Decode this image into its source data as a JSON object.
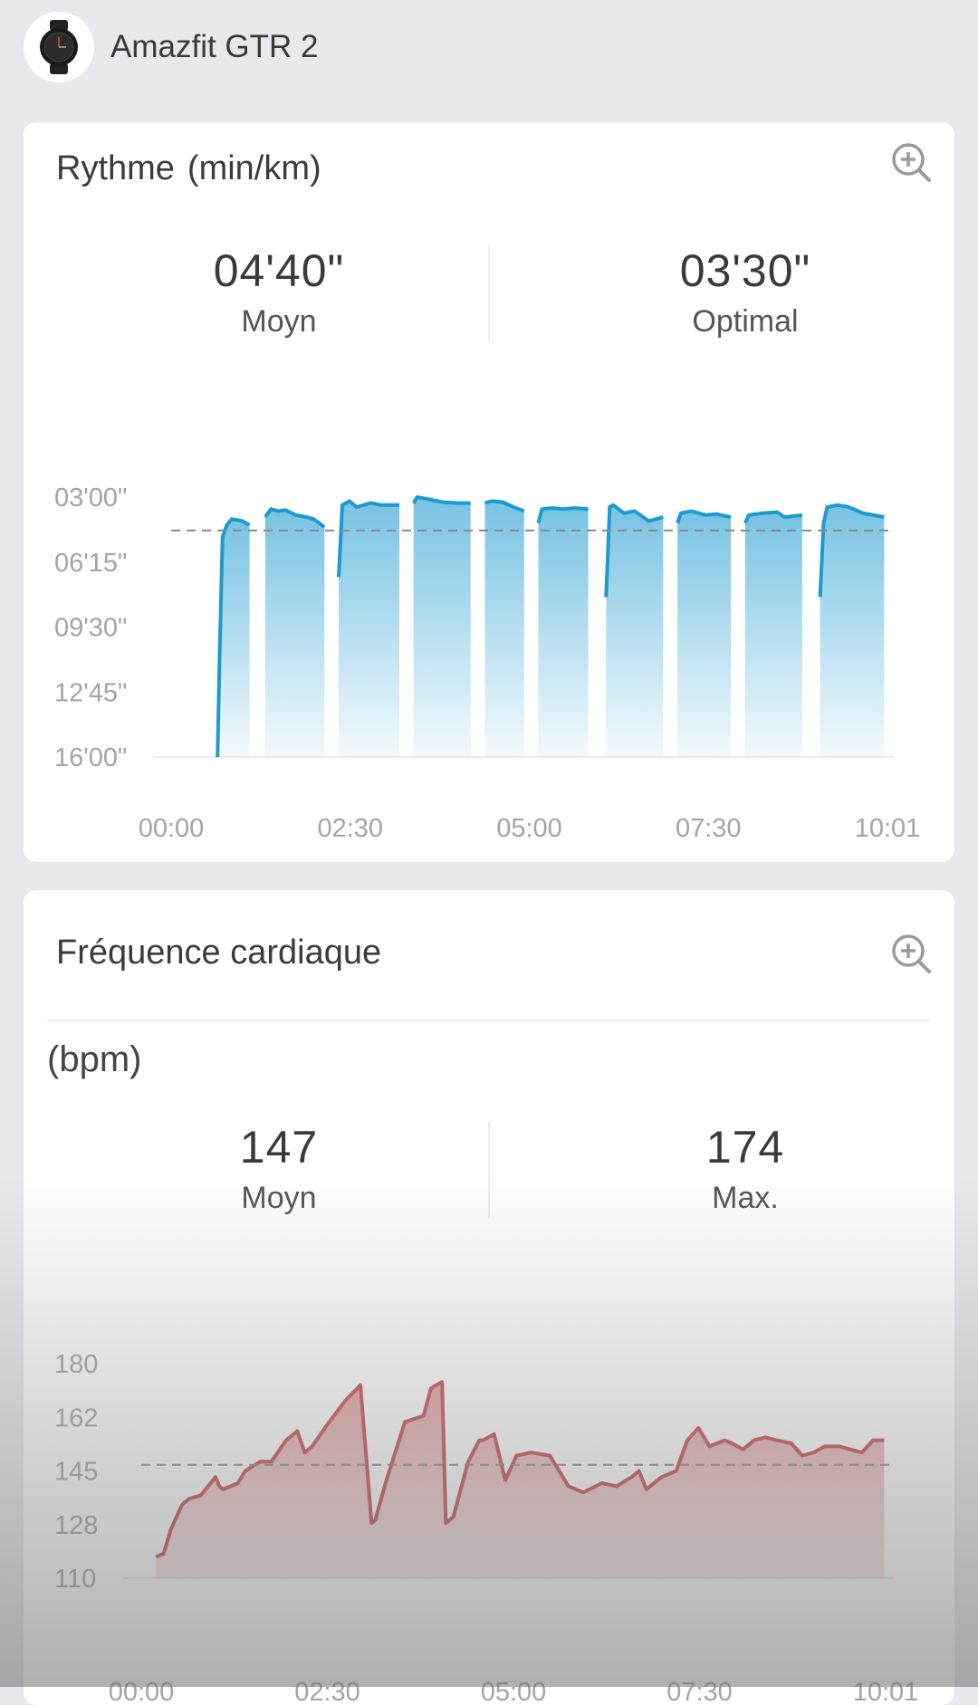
{
  "header": {
    "device_name": "Amazfit GTR 2",
    "device_icon": "watch-icon"
  },
  "pace": {
    "title": "Rythme",
    "unit": "(min/km)",
    "avg_value": "04'40\"",
    "avg_label": "Moyn",
    "best_value": "03'30\"",
    "best_label": "Optimal",
    "zoom_icon": "zoom-in-icon"
  },
  "heart_rate": {
    "title": "Fréquence cardiaque",
    "unit": "(bpm)",
    "avg_value": "147",
    "avg_label": "Moyn",
    "max_value": "174",
    "max_label": "Max.",
    "zoom_icon": "zoom-in-icon"
  },
  "chart_data": [
    {
      "type": "area",
      "color": "#1d9ad0",
      "y_inverted": true,
      "ylim": [
        16,
        3
      ],
      "y_ticks": [
        "03'00\"",
        "06'15\"",
        "09'30\"",
        "12'45\"",
        "16'00\""
      ],
      "x_ticks": [
        "00:00",
        "02:30",
        "05:00",
        "07:30",
        "10:01"
      ],
      "xlim": [
        0,
        10.02
      ],
      "average": 4.67,
      "segments": [
        {
          "x": [
            0.65,
            0.68,
            0.72,
            0.78,
            0.85,
            1.0,
            1.1
          ],
          "y": [
            16,
            11,
            5,
            4.4,
            4.1,
            4.2,
            4.4
          ]
        },
        {
          "x": [
            1.32,
            1.4,
            1.5,
            1.6,
            1.75,
            1.9,
            2.0,
            2.15
          ],
          "y": [
            4.0,
            3.6,
            3.7,
            3.65,
            3.9,
            4.0,
            4.1,
            4.5
          ]
        },
        {
          "x": [
            2.35,
            2.4,
            2.5,
            2.6,
            2.8,
            2.95,
            3.2
          ],
          "y": [
            7.0,
            3.4,
            3.2,
            3.5,
            3.3,
            3.4,
            3.4
          ]
        },
        {
          "x": [
            3.4,
            3.45,
            3.6,
            3.8,
            4.0,
            4.2
          ],
          "y": [
            3.3,
            3.0,
            3.1,
            3.25,
            3.3,
            3.3
          ]
        },
        {
          "x": [
            4.4,
            4.5,
            4.65,
            4.8,
            4.95
          ],
          "y": [
            3.3,
            3.2,
            3.25,
            3.5,
            3.7
          ]
        },
        {
          "x": [
            5.15,
            5.2,
            5.35,
            5.5,
            5.65,
            5.85
          ],
          "y": [
            4.3,
            3.6,
            3.55,
            3.6,
            3.55,
            3.6
          ]
        },
        {
          "x": [
            6.1,
            6.15,
            6.2,
            6.35,
            6.5,
            6.7,
            6.9
          ],
          "y": [
            8.0,
            3.5,
            3.4,
            3.8,
            3.7,
            4.2,
            4.0
          ]
        },
        {
          "x": [
            7.1,
            7.15,
            7.3,
            7.5,
            7.65,
            7.85
          ],
          "y": [
            4.3,
            3.8,
            3.7,
            3.9,
            3.85,
            4.0
          ]
        },
        {
          "x": [
            8.05,
            8.1,
            8.3,
            8.5,
            8.6,
            8.85
          ],
          "y": [
            4.3,
            3.9,
            3.8,
            3.75,
            4.0,
            3.9
          ]
        },
        {
          "x": [
            9.1,
            9.15,
            9.2,
            9.35,
            9.5,
            9.7,
            10.0
          ],
          "y": [
            8.0,
            4.3,
            3.5,
            3.4,
            3.5,
            3.8,
            4.0
          ]
        }
      ]
    },
    {
      "type": "area",
      "color": "#c85050",
      "ylim": [
        110,
        180
      ],
      "y_ticks": [
        "180",
        "162",
        "145",
        "128",
        "110"
      ],
      "x_ticks": [
        "00:00",
        "02:30",
        "05:00",
        "07:30",
        "10:01"
      ],
      "xlim": [
        0,
        10.02
      ],
      "average": 147,
      "x": [
        0.2,
        0.3,
        0.4,
        0.55,
        0.65,
        0.8,
        1.0,
        1.05,
        1.1,
        1.3,
        1.4,
        1.6,
        1.75,
        1.95,
        2.1,
        2.2,
        2.3,
        2.5,
        2.75,
        2.95,
        3.1,
        3.15,
        3.3,
        3.55,
        3.8,
        3.9,
        4.05,
        4.1,
        4.2,
        4.4,
        4.55,
        4.6,
        4.75,
        4.9,
        5.05,
        5.25,
        5.5,
        5.75,
        5.95,
        6.2,
        6.4,
        6.6,
        6.7,
        6.8,
        7.0,
        7.2,
        7.35,
        7.5,
        7.65,
        7.85,
        7.95,
        8.1,
        8.25,
        8.4,
        8.55,
        8.75,
        8.9,
        9.05,
        9.2,
        9.4,
        9.55,
        9.7,
        9.85,
        10.0
      ],
      "y": [
        117,
        118,
        126,
        134,
        136,
        137,
        143,
        140,
        139,
        141,
        145,
        148,
        148,
        155,
        158,
        151,
        153,
        160,
        168,
        173,
        128,
        129,
        142,
        161,
        163,
        172,
        174,
        128,
        130,
        148,
        155,
        155,
        157,
        142,
        150,
        151,
        150,
        140,
        138,
        141,
        140,
        143,
        145,
        139,
        143,
        145,
        155,
        159,
        153,
        155,
        154,
        152,
        155,
        156,
        155,
        154,
        150,
        151,
        153,
        153,
        152,
        151,
        155,
        155
      ]
    }
  ]
}
